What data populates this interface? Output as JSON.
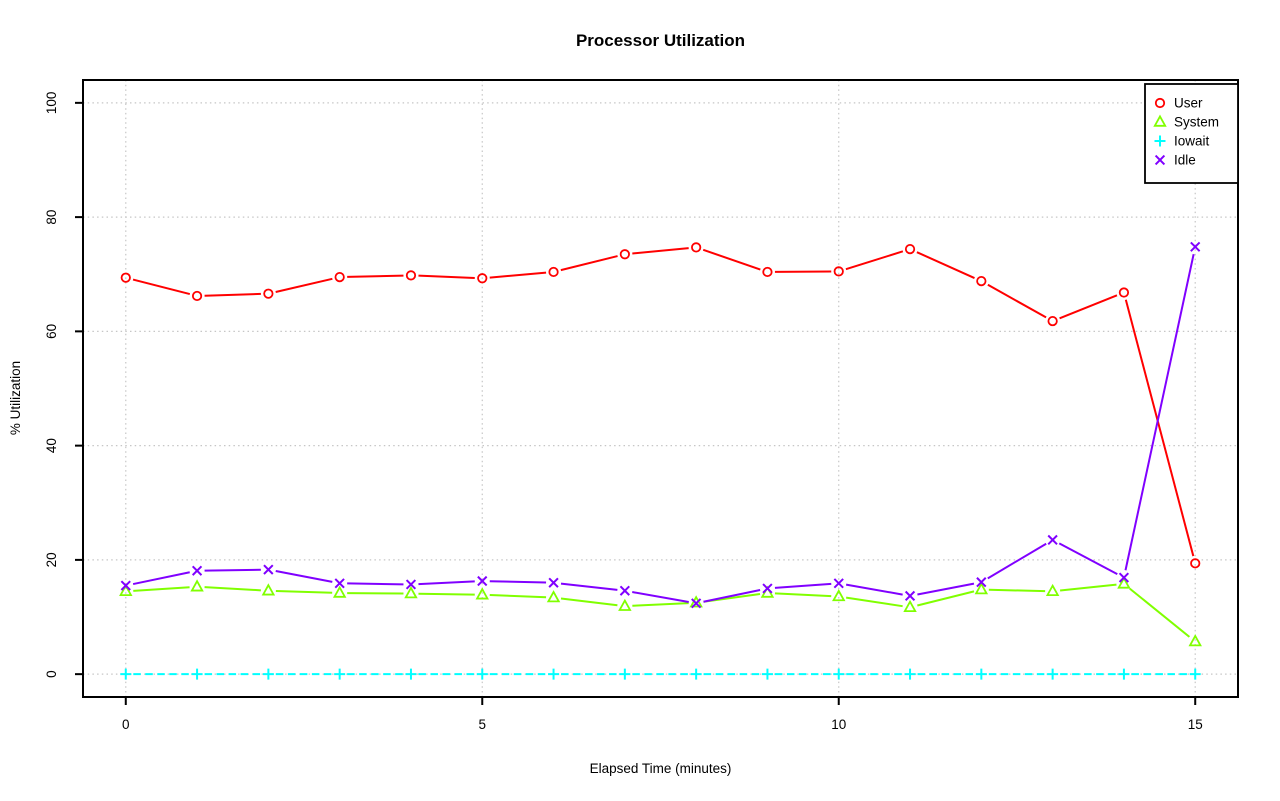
{
  "chart_data": {
    "type": "line",
    "title": "Processor Utilization",
    "xlabel": "Elapsed Time (minutes)",
    "ylabel": "% Utilization",
    "x": [
      0,
      1,
      2,
      3,
      4,
      5,
      6,
      7,
      8,
      9,
      10,
      11,
      12,
      13,
      14,
      15
    ],
    "xlim": [
      -0.6,
      15.6
    ],
    "ylim": [
      -4,
      104
    ],
    "xticks": [
      0,
      5,
      10,
      15
    ],
    "yticks": [
      0,
      20,
      40,
      60,
      80,
      100
    ],
    "grid": "dotted",
    "legend_position": "topright",
    "series": [
      {
        "name": "User",
        "color": "#ff0000",
        "marker": "circle",
        "line": "solid",
        "values": [
          69.4,
          66.2,
          66.6,
          69.5,
          69.8,
          69.3,
          70.4,
          73.5,
          74.7,
          70.4,
          70.5,
          74.4,
          68.8,
          61.8,
          66.8,
          19.4
        ]
      },
      {
        "name": "System",
        "color": "#80ff00",
        "marker": "triangle",
        "line": "solid",
        "values": [
          14.5,
          15.3,
          14.6,
          14.2,
          14.1,
          13.9,
          13.4,
          11.9,
          12.5,
          14.2,
          13.6,
          11.7,
          14.8,
          14.5,
          15.8,
          5.7
        ]
      },
      {
        "name": "Iowait",
        "color": "#00ffff",
        "marker": "plus",
        "line": "dashed",
        "values": [
          0,
          0,
          0,
          0,
          0,
          0,
          0,
          0,
          0,
          0,
          0,
          0,
          0,
          0,
          0,
          0
        ]
      },
      {
        "name": "Idle",
        "color": "#8000ff",
        "marker": "x",
        "line": "solid",
        "values": [
          15.5,
          18.1,
          18.3,
          15.9,
          15.7,
          16.3,
          16.0,
          14.6,
          12.4,
          15.0,
          15.9,
          13.7,
          16.1,
          23.5,
          16.9,
          74.8
        ]
      }
    ]
  },
  "colors": {
    "background": "#ffffff",
    "axis": "#000000",
    "grid": "#c6c6c6",
    "text": "#000000"
  }
}
